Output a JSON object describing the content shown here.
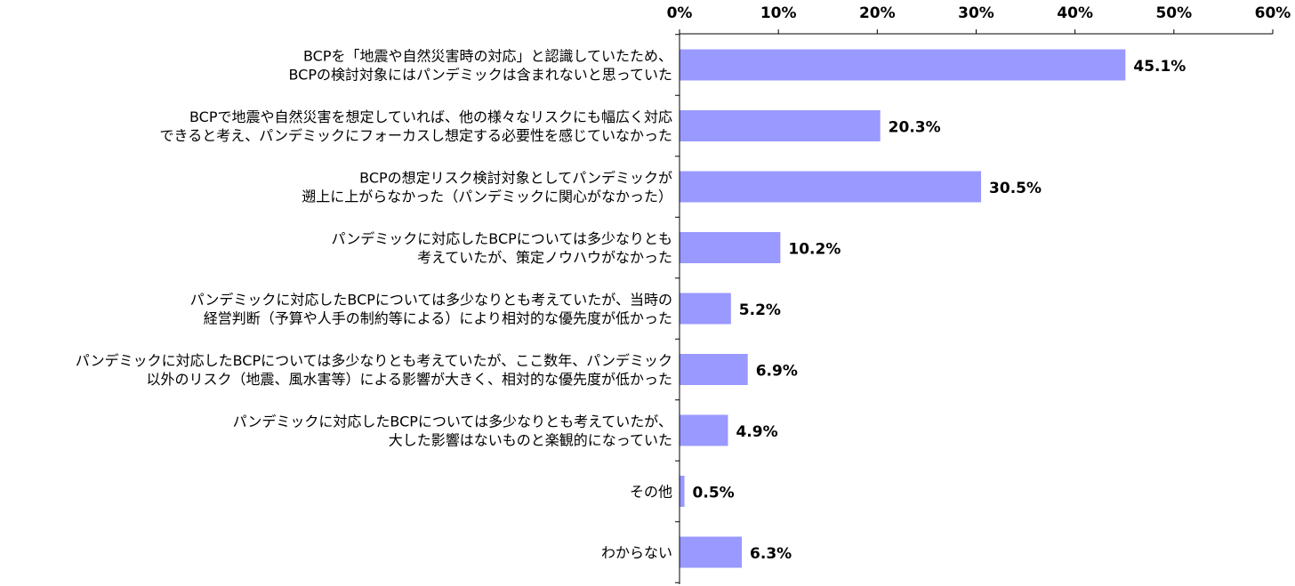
{
  "chart_data": {
    "type": "bar",
    "orientation": "horizontal",
    "title": "",
    "xlabel": "",
    "ylabel": "",
    "categories": [
      [
        "BCPを「地震や自然災害時の対応」と認識していたため、",
        "BCPの検討対象にはパンデミックは含まれないと思っていた"
      ],
      [
        "BCPで地震や自然災害を想定していれば、他の様々なリスクにも幅広く対応",
        "できると考え、パンデミックにフォーカスし想定する必要性を感じていなかった"
      ],
      [
        "BCPの想定リスク検討対象としてパンデミックが",
        "遡上に上がらなかった（パンデミックに関心がなかった）"
      ],
      [
        "パンデミックに対応したBCPについては多少なりとも",
        "考えていたが、策定ノウハウがなかった"
      ],
      [
        "パンデミックに対応したBCPについては多少なりとも考えていたが、当時の",
        "経営判断（予算や人手の制約等による）により相対的な優先度が低かった"
      ],
      [
        "パンデミックに対応したBCPについては多少なりとも考えていたが、ここ数年、パンデミック",
        "以外のリスク（地震、風水害等）による影響が大きく、相対的な優先度が低かった"
      ],
      [
        "パンデミックに対応したBCPについては多少なりとも考えていたが、",
        "大した影響はないものと楽観的になっていた"
      ],
      [
        "その他"
      ],
      [
        "わからない"
      ]
    ],
    "values": [
      45.1,
      20.3,
      30.5,
      10.2,
      5.2,
      6.9,
      4.9,
      0.5,
      6.3
    ],
    "data_labels": [
      "45.1%",
      "20.3%",
      "30.5%",
      "10.2%",
      "5.2%",
      "6.9%",
      "4.9%",
      "0.5%",
      "6.3%"
    ],
    "xlim": [
      0,
      60
    ],
    "x_ticks": [
      0,
      10,
      20,
      30,
      40,
      50,
      60
    ],
    "x_tick_labels": [
      "0%",
      "10%",
      "20%",
      "30%",
      "40%",
      "50%",
      "60%"
    ],
    "x_axis_position": "top",
    "grid": false,
    "legend": false,
    "bar_color": "#9999ff"
  }
}
